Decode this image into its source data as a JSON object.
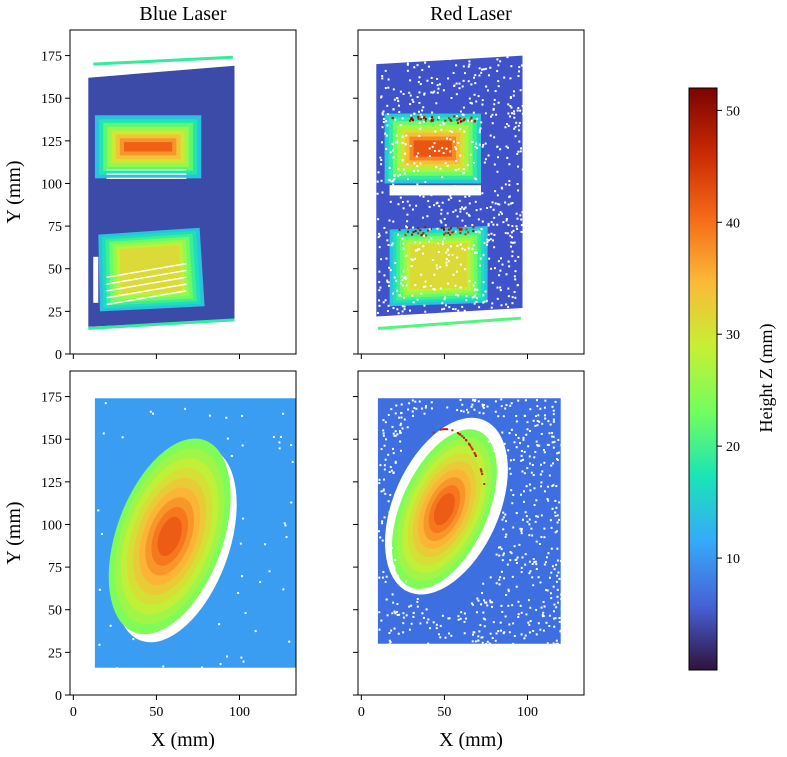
{
  "figure": {
    "columns": [
      "Blue Laser",
      "Red Laser"
    ],
    "xlabel": "X (mm)",
    "ylabel": "Y (mm)",
    "colorbar_label": "Height Z (mm)"
  },
  "chart_data": [
    {
      "type": "heatmap",
      "title": "Blue Laser",
      "row": 0,
      "col": 0,
      "subject": "blocks",
      "xlabel": "",
      "ylabel": "Y (mm)",
      "xlim": [
        -2,
        134
      ],
      "ylim": [
        0,
        190
      ],
      "xticks": [
        0,
        50,
        100
      ],
      "yticks": [
        0,
        25,
        50,
        75,
        100,
        125,
        150,
        175
      ],
      "show_xtick_labels": false,
      "show_ytick_labels": true
    },
    {
      "type": "heatmap",
      "title": "Red Laser",
      "row": 0,
      "col": 1,
      "subject": "blocks",
      "xlabel": "",
      "ylabel": "",
      "xlim": [
        -2,
        134
      ],
      "ylim": [
        0,
        190
      ],
      "xticks": [
        0,
        50,
        100
      ],
      "yticks": [
        0,
        25,
        50,
        75,
        100,
        125,
        150,
        175
      ],
      "show_xtick_labels": false,
      "show_ytick_labels": false
    },
    {
      "type": "heatmap",
      "title": "",
      "row": 1,
      "col": 0,
      "subject": "oval",
      "xlabel": "X (mm)",
      "ylabel": "Y (mm)",
      "xlim": [
        -2,
        134
      ],
      "ylim": [
        0,
        190
      ],
      "xticks": [
        0,
        50,
        100
      ],
      "yticks": [
        0,
        25,
        50,
        75,
        100,
        125,
        150,
        175
      ],
      "show_xtick_labels": true,
      "show_ytick_labels": true
    },
    {
      "type": "heatmap",
      "title": "",
      "row": 1,
      "col": 1,
      "subject": "oval",
      "xlabel": "X (mm)",
      "ylabel": "",
      "xlim": [
        -2,
        134
      ],
      "ylim": [
        0,
        190
      ],
      "xticks": [
        0,
        50,
        100
      ],
      "yticks": [
        0,
        25,
        50,
        75,
        100,
        125,
        150,
        175
      ],
      "show_xtick_labels": true,
      "show_ytick_labels": false
    }
  ],
  "colorbar": {
    "label": "Height Z (mm)",
    "colormap": "turbo",
    "range": [
      0,
      52
    ],
    "ticks": [
      10,
      20,
      30,
      40,
      50
    ],
    "stops": [
      "#30123b",
      "#4662d7",
      "#36aaf9",
      "#1ae4b6",
      "#72fe5e",
      "#c7ef34",
      "#fbb938",
      "#f56918",
      "#c92903",
      "#7a0403"
    ]
  }
}
